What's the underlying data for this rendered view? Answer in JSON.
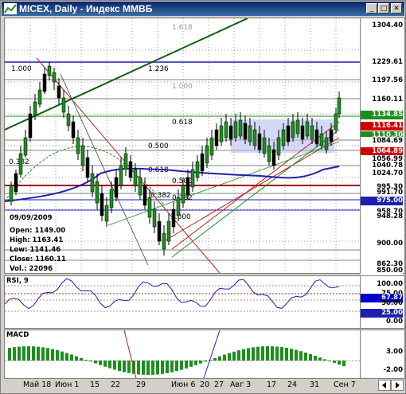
{
  "window": {
    "title": "MICEX, Daily - Индекс ММВБ"
  },
  "info": {
    "date": "09/09/2009",
    "open": "Open: 1149.00",
    "high": "High: 1163.41",
    "low": "Low: 1141.46",
    "close": "Close: 1160.11",
    "vol": "Vol.: 22096"
  },
  "fib_labels": [
    "1.618",
    "1.000",
    "1.236",
    "1.000",
    "0.618",
    "0.500",
    "0.382",
    "0.618",
    "0.500",
    "0.382",
    "0.382",
    "1.000"
  ],
  "price_axis": [
    {
      "text": "1304.40",
      "bg": "#ffffff",
      "fg": "#000000"
    },
    {
      "text": "1229.61",
      "bg": "#ffffff",
      "fg": "#000000"
    },
    {
      "text": "1197.56",
      "bg": "#ffffff",
      "fg": "#000000"
    },
    {
      "text": "1160.11",
      "bg": "#ffffff",
      "fg": "#000000"
    },
    {
      "text": "1134.85",
      "bg": "#1d8f1d",
      "fg": "#ffffff"
    },
    {
      "text": "1116.41",
      "bg": "#d40000",
      "fg": "#ffffff"
    },
    {
      "text": "1110.30",
      "bg": "#1d8f1d",
      "fg": "#ffffff"
    },
    {
      "text": "1084.69",
      "bg": "#ffffff",
      "fg": "#000000"
    },
    {
      "text": "1064.89",
      "bg": "#d40000",
      "fg": "#ffffff"
    },
    {
      "text": "1056.99",
      "bg": "#ffffff",
      "fg": "#000000"
    },
    {
      "text": "1040.78",
      "bg": "#ffffff",
      "fg": "#000000"
    },
    {
      "text": "1024.70",
      "bg": "#ffffff",
      "fg": "#000000"
    },
    {
      "text": "995.30",
      "bg": "#ffffff",
      "fg": "#000000"
    },
    {
      "text": "991.70",
      "bg": "#ffffff",
      "fg": "#000000"
    },
    {
      "text": "975.00",
      "bg": "#1f1fb0",
      "fg": "#ffffff"
    },
    {
      "text": "958.70",
      "bg": "#ffffff",
      "fg": "#000000"
    },
    {
      "text": "948.28",
      "bg": "#ffffff",
      "fg": "#000000"
    },
    {
      "text": "900.00",
      "bg": "#ffffff",
      "fg": "#000000"
    },
    {
      "text": "862.30",
      "bg": "#ffffff",
      "fg": "#000000"
    },
    {
      "text": "850.00",
      "bg": "#ffffff",
      "fg": "#000000"
    }
  ],
  "rsi": {
    "label": "RSI, 9",
    "axis": [
      "100.00",
      "75.00",
      "67.87",
      "50.00",
      "25.00",
      "0.00"
    ]
  },
  "macd": {
    "label": "MACD",
    "axis": [
      "3.00",
      "-2.00"
    ]
  },
  "x_axis": [
    "Май 18",
    "Июн 1",
    "15",
    "22",
    "29",
    "Июн 6",
    "20",
    "27",
    "Авг 3",
    "17",
    "24",
    "31",
    "Сен 7"
  ],
  "colors": {
    "title_bar": "#0a246a",
    "up_candle": "#1d8f1d",
    "ma_blue": "#1f1fb0",
    "support_red": "#a00000"
  }
}
